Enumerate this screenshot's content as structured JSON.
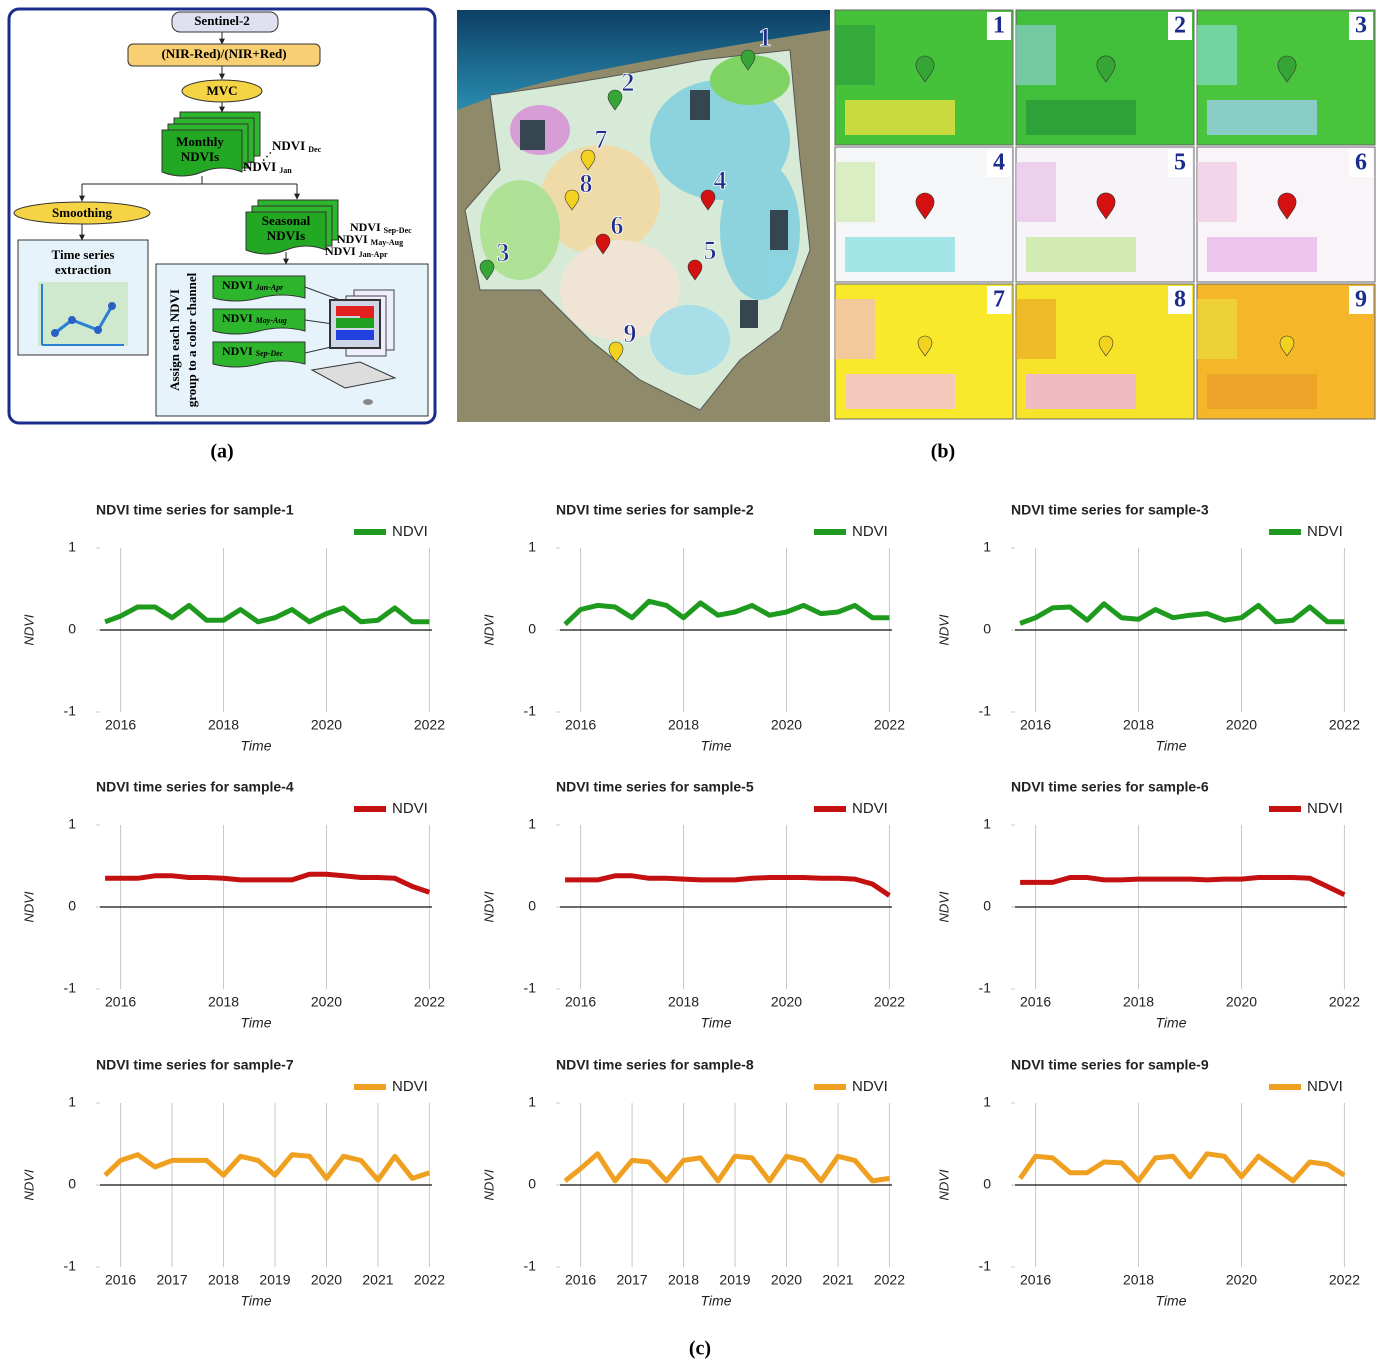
{
  "flowchart": {
    "source": "Sentinel-2",
    "formula": "(NIR-Red)/(NIR+Red)",
    "composite": "MVC",
    "monthly": {
      "lines": [
        "Monthly",
        "NDVIs"
      ],
      "last": {
        "text": "NDVI",
        "sub": "Dec"
      },
      "first": {
        "text": "NDVI",
        "sub": "Jan"
      }
    },
    "smoothing": "Smoothing",
    "extraction": {
      "lines": [
        "Time series",
        "extraction"
      ]
    },
    "seasonal": {
      "lines": [
        "Seasonal",
        "NDVIs"
      ],
      "groups": [
        {
          "text": "NDVI",
          "sub": "Sep-Dec"
        },
        {
          "text": "NDVI",
          "sub": "May-Aug"
        },
        {
          "text": "NDVI",
          "sub": "Jan-Apr"
        }
      ]
    },
    "assign": {
      "lines": [
        "Assign each NDVI",
        "group to a color channel"
      ],
      "boxes": [
        {
          "text": "NDVI",
          "sub": "Jan-Apr"
        },
        {
          "text": "NDVI",
          "sub": "May-Aug"
        },
        {
          "text": "NDVI",
          "sub": "Sep-Dec"
        }
      ]
    }
  },
  "map": {
    "markers": [
      {
        "label": "1",
        "color": "#35a535"
      },
      {
        "label": "2",
        "color": "#35a535"
      },
      {
        "label": "3",
        "color": "#35a535"
      },
      {
        "label": "4",
        "color": "#d41010"
      },
      {
        "label": "5",
        "color": "#d41010"
      },
      {
        "label": "6",
        "color": "#d41010"
      },
      {
        "label": "7",
        "color": "#f2d21e"
      },
      {
        "label": "8",
        "color": "#f2d21e"
      },
      {
        "label": "9",
        "color": "#f2d21e"
      }
    ]
  },
  "tiles": [
    {
      "label": "1"
    },
    {
      "label": "2"
    },
    {
      "label": "3"
    },
    {
      "label": "4"
    },
    {
      "label": "5"
    },
    {
      "label": "6"
    },
    {
      "label": "7"
    },
    {
      "label": "8"
    },
    {
      "label": "9"
    }
  ],
  "panel_labels": [
    "(a)",
    "(b)",
    "(c)"
  ],
  "chart_data": [
    {
      "type": "line",
      "title": "NDVI time series for sample-1",
      "xlabel": "Time",
      "ylabel": "NDVI",
      "x": [
        2015.7,
        2016.0,
        2016.33,
        2016.67,
        2017.0,
        2017.33,
        2017.67,
        2018.0,
        2018.33,
        2018.67,
        2019.0,
        2019.33,
        2019.67,
        2020.0,
        2020.33,
        2020.67,
        2021.0,
        2021.33,
        2021.67,
        2022.0
      ],
      "series": [
        {
          "name": "NDVI",
          "color": "#1e9a1e",
          "values": [
            0.1,
            0.17,
            0.28,
            0.28,
            0.15,
            0.3,
            0.12,
            0.12,
            0.25,
            0.1,
            0.15,
            0.25,
            0.1,
            0.2,
            0.27,
            0.1,
            0.12,
            0.27,
            0.1,
            0.1
          ]
        }
      ],
      "xlim": [
        2015.6,
        2022.05
      ],
      "xticks": [
        2016,
        2018,
        2020,
        2022
      ],
      "ylim": [
        -1,
        1
      ],
      "yticks": [
        -1,
        0,
        1
      ],
      "grid": true
    },
    {
      "type": "line",
      "title": "NDVI time series for sample-2",
      "xlabel": "Time",
      "ylabel": "NDVI",
      "x": [
        2015.7,
        2016.0,
        2016.33,
        2016.67,
        2017.0,
        2017.33,
        2017.67,
        2018.0,
        2018.33,
        2018.67,
        2019.0,
        2019.33,
        2019.67,
        2020.0,
        2020.33,
        2020.67,
        2021.0,
        2021.33,
        2021.67,
        2022.0
      ],
      "series": [
        {
          "name": "NDVI",
          "color": "#1e9a1e",
          "values": [
            0.07,
            0.25,
            0.3,
            0.28,
            0.15,
            0.35,
            0.3,
            0.15,
            0.33,
            0.18,
            0.22,
            0.3,
            0.18,
            0.22,
            0.3,
            0.2,
            0.22,
            0.3,
            0.15,
            0.15
          ]
        }
      ],
      "xlim": [
        2015.6,
        2022.05
      ],
      "xticks": [
        2016,
        2018,
        2020,
        2022
      ],
      "ylim": [
        -1,
        1
      ],
      "yticks": [
        -1,
        0,
        1
      ],
      "grid": true
    },
    {
      "type": "line",
      "title": "NDVI time series for sample-3",
      "xlabel": "Time",
      "ylabel": "NDVI",
      "x": [
        2015.7,
        2016.0,
        2016.33,
        2016.67,
        2017.0,
        2017.33,
        2017.67,
        2018.0,
        2018.33,
        2018.67,
        2019.0,
        2019.33,
        2019.67,
        2020.0,
        2020.33,
        2020.67,
        2021.0,
        2021.33,
        2021.67,
        2022.0
      ],
      "series": [
        {
          "name": "NDVI",
          "color": "#1e9a1e",
          "values": [
            0.08,
            0.15,
            0.27,
            0.28,
            0.12,
            0.32,
            0.15,
            0.13,
            0.25,
            0.15,
            0.18,
            0.2,
            0.12,
            0.15,
            0.3,
            0.1,
            0.12,
            0.28,
            0.1,
            0.1
          ]
        }
      ],
      "xlim": [
        2015.6,
        2022.05
      ],
      "xticks": [
        2016,
        2018,
        2020,
        2022
      ],
      "ylim": [
        -1,
        1
      ],
      "yticks": [
        -1,
        0,
        1
      ],
      "grid": true
    },
    {
      "type": "line",
      "title": "NDVI time series for sample-4",
      "xlabel": "Time",
      "ylabel": "NDVI",
      "x": [
        2015.7,
        2016.0,
        2016.33,
        2016.67,
        2017.0,
        2017.33,
        2017.67,
        2018.0,
        2018.33,
        2018.67,
        2019.0,
        2019.33,
        2019.67,
        2020.0,
        2020.33,
        2020.67,
        2021.0,
        2021.33,
        2021.67,
        2022.0
      ],
      "series": [
        {
          "name": "NDVI",
          "color": "#c41010",
          "values": [
            0.35,
            0.35,
            0.35,
            0.38,
            0.38,
            0.36,
            0.36,
            0.35,
            0.33,
            0.33,
            0.33,
            0.33,
            0.4,
            0.4,
            0.38,
            0.36,
            0.36,
            0.35,
            0.25,
            0.18
          ]
        }
      ],
      "xlim": [
        2015.6,
        2022.05
      ],
      "xticks": [
        2016,
        2018,
        2020,
        2022
      ],
      "ylim": [
        -1,
        1
      ],
      "yticks": [
        -1,
        0,
        1
      ],
      "grid": true
    },
    {
      "type": "line",
      "title": "NDVI time series for sample-5",
      "xlabel": "Time",
      "ylabel": "NDVI",
      "x": [
        2015.7,
        2016.0,
        2016.33,
        2016.67,
        2017.0,
        2017.33,
        2017.67,
        2018.0,
        2018.33,
        2018.67,
        2019.0,
        2019.33,
        2019.67,
        2020.0,
        2020.33,
        2020.67,
        2021.0,
        2021.33,
        2021.67,
        2022.0
      ],
      "series": [
        {
          "name": "NDVI",
          "color": "#c41010",
          "values": [
            0.33,
            0.33,
            0.33,
            0.38,
            0.38,
            0.35,
            0.35,
            0.34,
            0.33,
            0.33,
            0.33,
            0.35,
            0.36,
            0.36,
            0.36,
            0.35,
            0.35,
            0.34,
            0.28,
            0.14
          ]
        }
      ],
      "xlim": [
        2015.6,
        2022.05
      ],
      "xticks": [
        2016,
        2018,
        2020,
        2022
      ],
      "ylim": [
        -1,
        1
      ],
      "yticks": [
        -1,
        0,
        1
      ],
      "grid": true
    },
    {
      "type": "line",
      "title": "NDVI time series for sample-6",
      "xlabel": "Time",
      "ylabel": "NDVI",
      "x": [
        2015.7,
        2016.0,
        2016.33,
        2016.67,
        2017.0,
        2017.33,
        2017.67,
        2018.0,
        2018.33,
        2018.67,
        2019.0,
        2019.33,
        2019.67,
        2020.0,
        2020.33,
        2020.67,
        2021.0,
        2021.33,
        2021.67,
        2022.0
      ],
      "series": [
        {
          "name": "NDVI",
          "color": "#c41010",
          "values": [
            0.3,
            0.3,
            0.3,
            0.36,
            0.36,
            0.33,
            0.33,
            0.34,
            0.34,
            0.34,
            0.34,
            0.33,
            0.34,
            0.34,
            0.36,
            0.36,
            0.36,
            0.35,
            0.25,
            0.15
          ]
        }
      ],
      "xlim": [
        2015.6,
        2022.05
      ],
      "xticks": [
        2016,
        2018,
        2020,
        2022
      ],
      "ylim": [
        -1,
        1
      ],
      "yticks": [
        -1,
        0,
        1
      ],
      "grid": true
    },
    {
      "type": "line",
      "title": "NDVI time series for sample-7",
      "xlabel": "Time",
      "ylabel": "NDVI",
      "x": [
        2015.7,
        2016.0,
        2016.33,
        2016.67,
        2017.0,
        2017.33,
        2017.67,
        2018.0,
        2018.33,
        2018.67,
        2019.0,
        2019.33,
        2019.67,
        2020.0,
        2020.33,
        2020.67,
        2021.0,
        2021.33,
        2021.67,
        2022.0
      ],
      "series": [
        {
          "name": "NDVI",
          "color": "#f0a020",
          "values": [
            0.12,
            0.3,
            0.37,
            0.22,
            0.3,
            0.3,
            0.3,
            0.12,
            0.35,
            0.3,
            0.12,
            0.37,
            0.35,
            0.08,
            0.35,
            0.3,
            0.06,
            0.35,
            0.08,
            0.15
          ]
        }
      ],
      "xlim": [
        2015.6,
        2022.05
      ],
      "xticks": [
        2016,
        2017,
        2018,
        2019,
        2020,
        2021,
        2022
      ],
      "ylim": [
        -1,
        1
      ],
      "yticks": [
        -1,
        0,
        1
      ],
      "grid": true
    },
    {
      "type": "line",
      "title": "NDVI time series for sample-8",
      "xlabel": "Time",
      "ylabel": "NDVI",
      "x": [
        2015.7,
        2016.0,
        2016.33,
        2016.67,
        2017.0,
        2017.33,
        2017.67,
        2018.0,
        2018.33,
        2018.67,
        2019.0,
        2019.33,
        2019.67,
        2020.0,
        2020.33,
        2020.67,
        2021.0,
        2021.33,
        2021.67,
        2022.0
      ],
      "series": [
        {
          "name": "NDVI",
          "color": "#f0a020",
          "values": [
            0.05,
            0.2,
            0.38,
            0.05,
            0.3,
            0.28,
            0.05,
            0.3,
            0.33,
            0.05,
            0.35,
            0.33,
            0.05,
            0.35,
            0.3,
            0.05,
            0.35,
            0.3,
            0.05,
            0.08
          ]
        }
      ],
      "xlim": [
        2015.6,
        2022.05
      ],
      "xticks": [
        2016,
        2017,
        2018,
        2019,
        2020,
        2021,
        2022
      ],
      "ylim": [
        -1,
        1
      ],
      "yticks": [
        -1,
        0,
        1
      ],
      "grid": true
    },
    {
      "type": "line",
      "title": "NDVI time series for sample-9",
      "xlabel": "Time",
      "ylabel": "NDVI",
      "x": [
        2015.7,
        2016.0,
        2016.33,
        2016.67,
        2017.0,
        2017.33,
        2017.67,
        2018.0,
        2018.33,
        2018.67,
        2019.0,
        2019.33,
        2019.67,
        2020.0,
        2020.33,
        2020.67,
        2021.0,
        2021.33,
        2021.67,
        2022.0
      ],
      "series": [
        {
          "name": "NDVI",
          "color": "#f0a020",
          "values": [
            0.08,
            0.35,
            0.33,
            0.15,
            0.15,
            0.28,
            0.27,
            0.05,
            0.33,
            0.35,
            0.1,
            0.38,
            0.35,
            0.1,
            0.35,
            0.2,
            0.05,
            0.28,
            0.25,
            0.12
          ]
        }
      ],
      "xlim": [
        2015.6,
        2022.05
      ],
      "xticks": [
        2016,
        2018,
        2020,
        2022
      ],
      "ylim": [
        -1,
        1
      ],
      "yticks": [
        -1,
        0,
        1
      ],
      "grid": true
    }
  ]
}
